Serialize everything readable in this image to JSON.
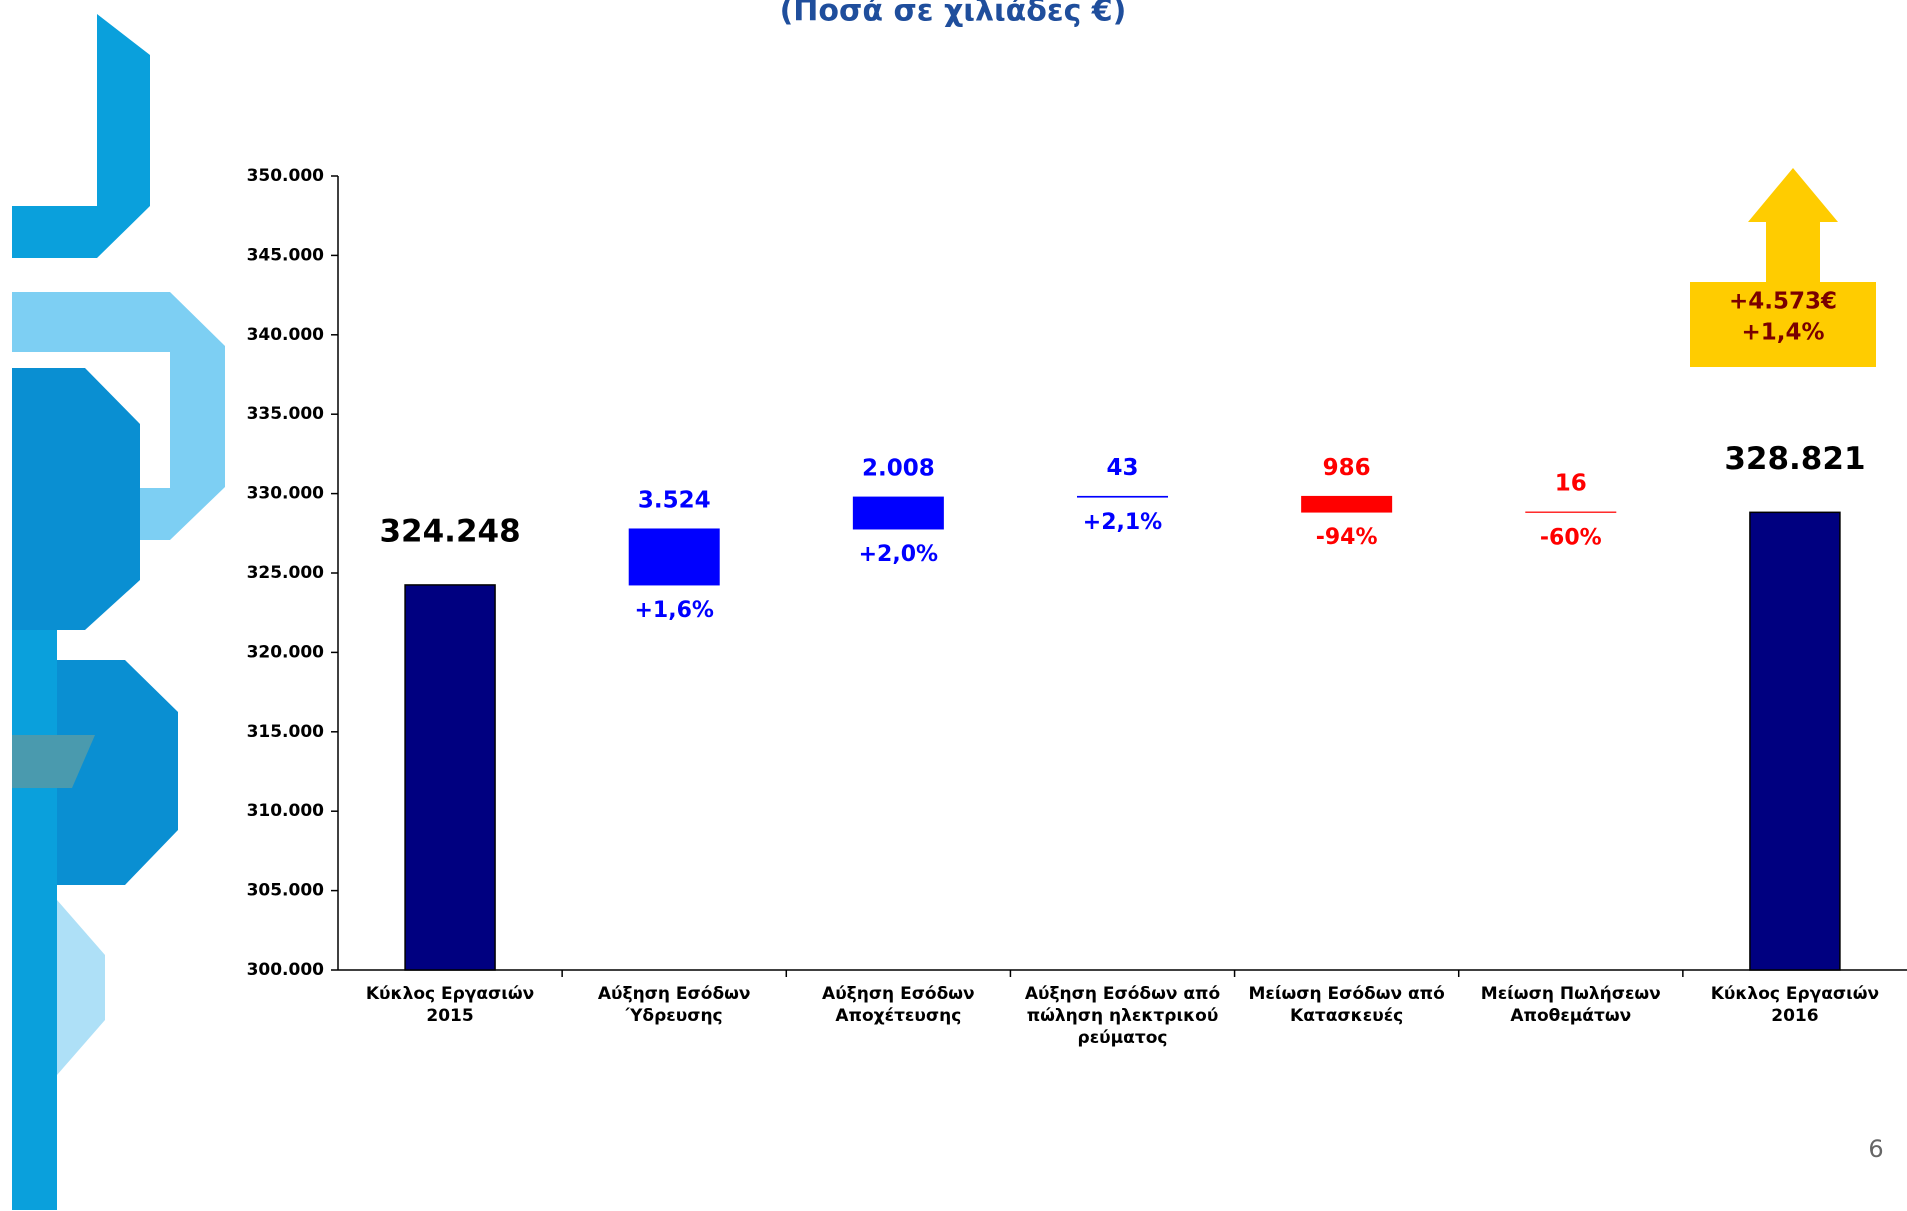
{
  "chart_data": {
    "type": "waterfall",
    "title": "(Ποσά σε χιλιάδες €)",
    "categories": [
      "Κύκλος Εργασιών 2015",
      "Αύξηση Εσόδων Ύδρευσης",
      "Αύξηση Εσόδων Αποχέτευσης",
      "Αύξηση Εσόδων από πώληση ηλεκτρικού ρεύματος",
      "Μείωση Εσόδων από Κατασκευές",
      "Μείωση Πωλήσεων Αποθεμάτων",
      "Κύκλος Εργασιών 2016"
    ],
    "values": [
      324248,
      3524,
      2008,
      43,
      -986,
      -16,
      328821
    ],
    "value_labels": [
      "324.248",
      "3.524",
      "2.008",
      "43",
      "986",
      "16",
      "328.821"
    ],
    "change_labels": [
      null,
      "+1,6%",
      "+2,0%",
      "+2,1%",
      "-94%",
      "-60%",
      null
    ],
    "is_total": [
      true,
      false,
      false,
      false,
      false,
      false,
      true
    ],
    "colors": [
      "#000080",
      "#0000ff",
      "#0000ff",
      "#0000ff",
      "#ff0000",
      "#ff0000",
      "#000080"
    ],
    "label_colors": [
      "#000000",
      "#0000ff",
      "#0000ff",
      "#0000ff",
      "#ff0000",
      "#ff0000",
      "#000000"
    ],
    "ylim": [
      300000,
      350000
    ],
    "yticks": [
      {
        "value": 300000,
        "label": "300.000"
      },
      {
        "value": 305000,
        "label": "305.000"
      },
      {
        "value": 310000,
        "label": "310.000"
      },
      {
        "value": 315000,
        "label": "315.000"
      },
      {
        "value": 320000,
        "label": "320.000"
      },
      {
        "value": 325000,
        "label": "325.000"
      },
      {
        "value": 330000,
        "label": "330.000"
      },
      {
        "value": 335000,
        "label": "335.000"
      },
      {
        "value": 340000,
        "label": "340.000"
      },
      {
        "value": 345000,
        "label": "345.000"
      },
      {
        "value": 350000,
        "label": "350.000"
      }
    ],
    "annotation": {
      "lines": [
        "+4.573€",
        "+1,4%"
      ]
    },
    "page_number": "6"
  }
}
